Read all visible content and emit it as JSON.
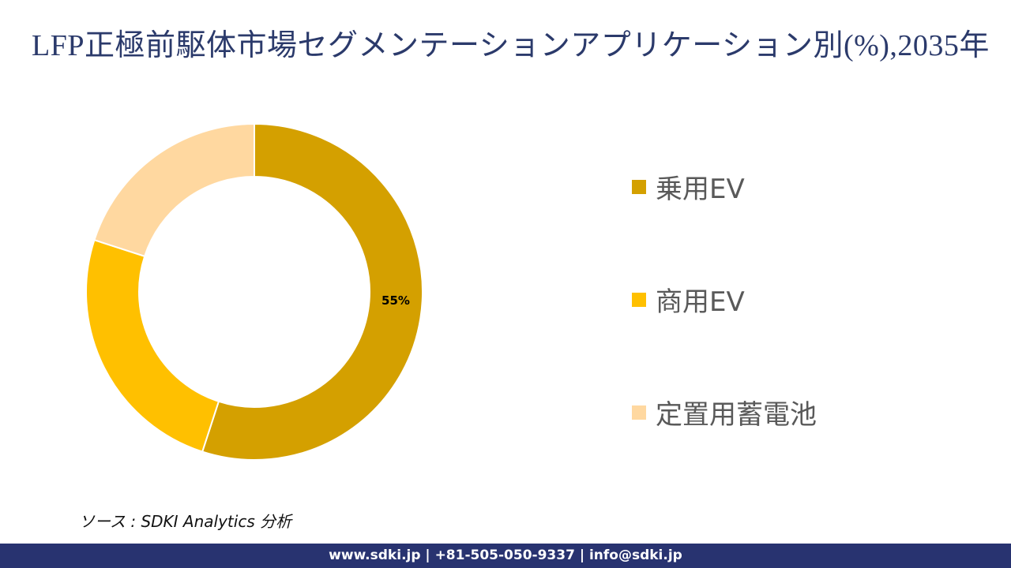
{
  "title": "LFP正極前駆体市場セグメンテーションアプリケーション別(%),2035年",
  "chart_data": {
    "type": "pie",
    "subtype": "donut",
    "title": "LFP正極前駆体市場セグメンテーションアプリケーション別(%),2035年",
    "categories": [
      "乗用EV",
      "商用EV",
      "定置用蓄電池"
    ],
    "values": [
      55,
      25,
      20
    ],
    "colors": [
      "#D4A000",
      "#FFC000",
      "#FFD8A0"
    ],
    "data_labels": [
      "55%",
      "",
      ""
    ],
    "legend_position": "right",
    "start_angle_deg": 0,
    "direction": "clockwise"
  },
  "legend": [
    {
      "label": "乗用EV",
      "color": "#D4A000"
    },
    {
      "label": "商用EV",
      "color": "#FFC000"
    },
    {
      "label": "定置用蓄電池",
      "color": "#FFD8A0"
    }
  ],
  "source": "ソース : SDKI Analytics  分析",
  "footer": "www.sdki.jp | +81-505-050-9337 | info@sdki.jp"
}
